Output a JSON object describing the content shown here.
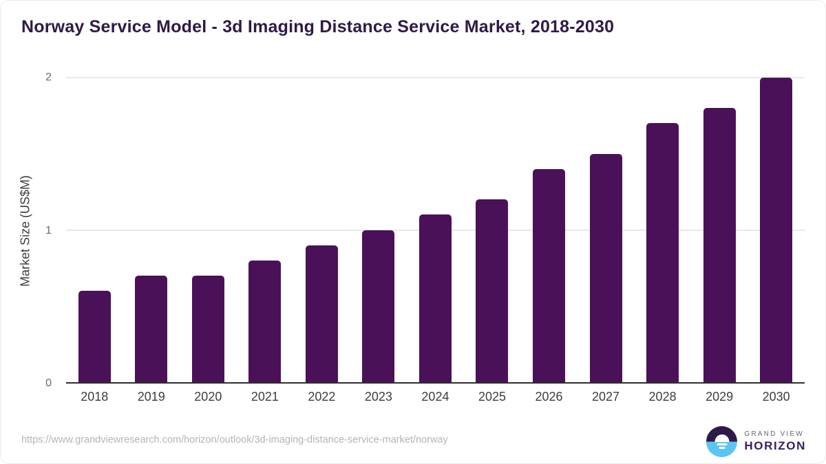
{
  "page": {
    "source_url": "https://www.grandviewresearch.com/horizon/outlook/3d-imaging-distance-service-market/norway",
    "logo": {
      "line1": "GRAND VIEW",
      "line2": "HORIZON"
    }
  },
  "colors": {
    "title": "#2e1a47",
    "bar": "#4a1158",
    "grid": "#e9e9e9",
    "axis_line": "#2e2e2e",
    "tick_label": "#6b6b6b",
    "x_label": "#3d3d3d",
    "url_text": "#b5b5b5",
    "logo_blue": "#5bc5f2",
    "logo_purple": "#2e1a47",
    "logo_purple_text": "#362063",
    "logo_gray": "#63636e"
  },
  "chart_data": {
    "type": "bar",
    "title": "Norway Service Model - 3d Imaging Distance Service Market, 2018-2030",
    "categories": [
      "2018",
      "2019",
      "2020",
      "2021",
      "2022",
      "2023",
      "2024",
      "2025",
      "2026",
      "2027",
      "2028",
      "2029",
      "2030"
    ],
    "values": [
      0.6,
      0.7,
      0.7,
      0.8,
      0.9,
      1.0,
      1.1,
      1.2,
      1.4,
      1.5,
      1.7,
      1.8,
      2.0
    ],
    "xlabel": "",
    "ylabel": "Market Size (US$M)",
    "ylim": [
      0,
      2
    ],
    "yticks": [
      0,
      1,
      2
    ],
    "grid": "horizontal",
    "legend": "none",
    "bar_color": "#4a1158"
  }
}
